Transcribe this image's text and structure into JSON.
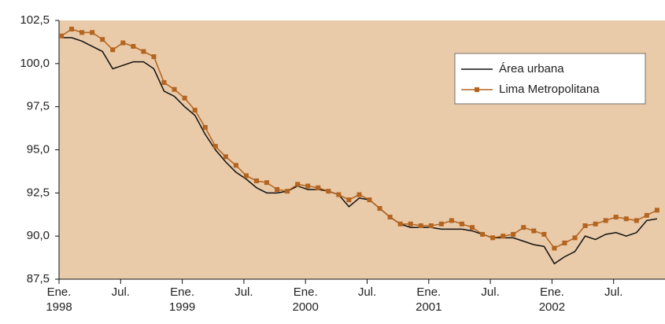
{
  "chart_data": {
    "type": "line",
    "categories": [
      "Ene. 1998",
      null,
      null,
      null,
      null,
      null,
      "Jul.",
      null,
      null,
      null,
      null,
      null,
      "Ene. 1999",
      null,
      null,
      null,
      null,
      null,
      "Jul.",
      null,
      null,
      null,
      null,
      null,
      "Ene. 2000",
      null,
      null,
      null,
      null,
      null,
      "Jul.",
      null,
      null,
      null,
      null,
      null,
      "Ene. 2001",
      null,
      null,
      null,
      null,
      null,
      "Jul.",
      null,
      null,
      null,
      null,
      null,
      "Ene. 2002",
      null,
      null,
      null,
      null,
      null,
      "Jul.",
      null,
      null,
      null,
      null
    ],
    "series": [
      {
        "name": "Área urbana",
        "color": "#111111",
        "markers": false,
        "values": [
          101.5,
          101.5,
          101.3,
          101.0,
          100.7,
          99.7,
          99.9,
          100.1,
          100.1,
          99.7,
          98.4,
          98.1,
          97.5,
          97.0,
          95.9,
          95.0,
          94.3,
          93.7,
          93.3,
          92.8,
          92.5,
          92.5,
          92.6,
          92.9,
          92.7,
          92.7,
          92.6,
          92.4,
          91.7,
          92.2,
          92.1,
          91.6,
          91.1,
          90.7,
          90.5,
          90.5,
          90.5,
          90.4,
          90.4,
          90.4,
          90.3,
          90.1,
          89.9,
          89.9,
          89.9,
          89.7,
          89.5,
          89.4,
          88.4,
          88.8,
          89.1,
          90.0,
          89.8,
          90.1,
          90.2,
          90.0,
          90.2,
          90.9,
          91.0
        ]
      },
      {
        "name": "Lima Metropolitana",
        "color": "#b3641f",
        "markers": true,
        "values": [
          101.6,
          102.0,
          101.8,
          101.8,
          101.4,
          100.8,
          101.2,
          101.0,
          100.7,
          100.4,
          98.9,
          98.5,
          98.0,
          97.3,
          96.3,
          95.2,
          94.6,
          94.1,
          93.5,
          93.2,
          93.1,
          92.7,
          92.6,
          93.0,
          92.9,
          92.8,
          92.6,
          92.4,
          92.1,
          92.4,
          92.1,
          91.6,
          91.1,
          90.7,
          90.7,
          90.6,
          90.6,
          90.7,
          90.9,
          90.7,
          90.5,
          90.1,
          89.9,
          90.0,
          90.1,
          90.5,
          90.3,
          90.1,
          89.3,
          89.6,
          89.9,
          90.6,
          90.7,
          90.9,
          91.1,
          91.0,
          90.9,
          91.2,
          91.5
        ]
      }
    ],
    "ylim": [
      87.5,
      102.5
    ],
    "yticks": [
      {
        "value": 87.5,
        "label": "87,5"
      },
      {
        "value": 90,
        "label": "90,0"
      },
      {
        "value": 92.5,
        "label": "92,5"
      },
      {
        "value": 95,
        "label": "95,0"
      },
      {
        "value": 97.5,
        "label": "97,5"
      },
      {
        "value": 100,
        "label": "100,0"
      },
      {
        "value": 102.5,
        "label": "102,5"
      }
    ],
    "background": "#e9caa9",
    "grid": false,
    "legend": "upper right"
  }
}
